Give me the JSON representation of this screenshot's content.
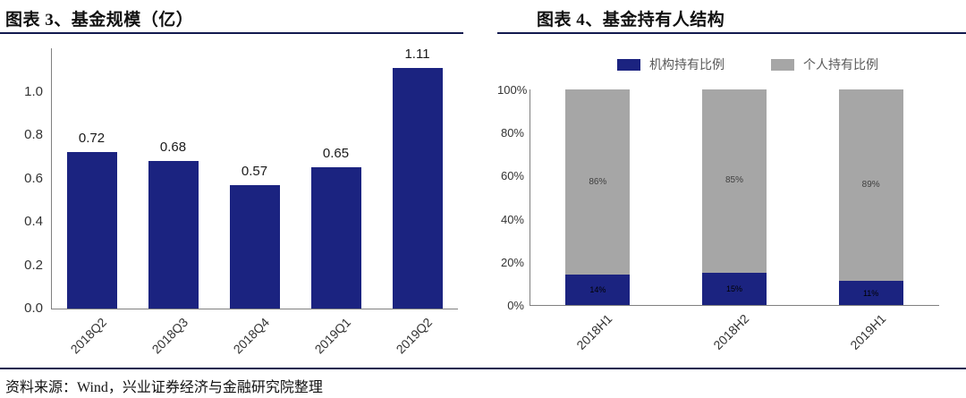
{
  "page": {
    "source_note": "资料来源：Wind，兴业证券经济与金融研究院整理"
  },
  "colors": {
    "navy": "#1b2380",
    "gray": "#a6a6a6",
    "rule": "#121a4f"
  },
  "chart_data": [
    {
      "type": "bar",
      "title": "图表 3、基金规模（亿）",
      "categories": [
        "2018Q2",
        "2018Q3",
        "2018Q4",
        "2019Q1",
        "2019Q2"
      ],
      "values": [
        0.72,
        0.68,
        0.57,
        0.65,
        1.11
      ],
      "data_labels": [
        "0.72",
        "0.68",
        "0.57",
        "0.65",
        "1.11"
      ],
      "xlabel": "",
      "ylabel": "",
      "ylim": [
        0,
        1.2
      ],
      "ytick_labels": [
        "0.0",
        "0.2",
        "0.4",
        "0.6",
        "0.8",
        "1.0"
      ],
      "grid": false,
      "legend": false,
      "bar_color": "#1b2380"
    },
    {
      "type": "bar",
      "stacked": true,
      "title": "图表 4、基金持有人结构",
      "categories": [
        "2018H1",
        "2018H2",
        "2019H1"
      ],
      "series": [
        {
          "name": "机构持有比例",
          "color": "#1b2380",
          "values": [
            14,
            15,
            11
          ],
          "labels": [
            "14%",
            "15%",
            "11%"
          ]
        },
        {
          "name": "个人持有比例",
          "color": "#a6a6a6",
          "values": [
            86,
            85,
            89
          ],
          "labels": [
            "86%",
            "85%",
            "89%"
          ]
        }
      ],
      "xlabel": "",
      "ylabel": "",
      "ylim": [
        0,
        100
      ],
      "ytick_labels": [
        "0%",
        "20%",
        "40%",
        "60%",
        "80%",
        "100%"
      ],
      "grid": false,
      "legend_position": "top"
    }
  ]
}
